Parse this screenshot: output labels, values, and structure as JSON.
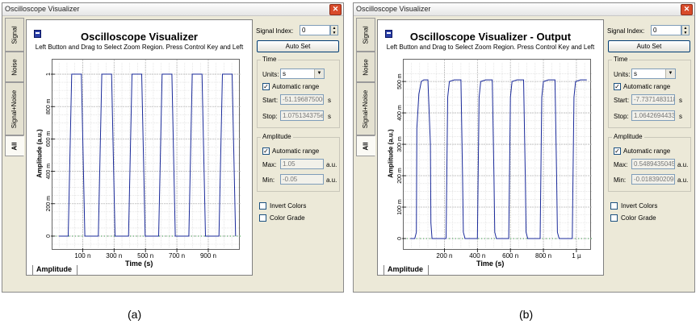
{
  "windows": [
    {
      "title": "Oscilloscope Visualizer",
      "tabs": [
        "Signal",
        "Noise",
        "Signal+Noise",
        "All"
      ],
      "active_tab": "All",
      "plot_title": "Oscilloscope Visualizer",
      "plot_subtitle": "Left Button and Drag to Select Zoom Region. Press Control Key and Left",
      "y_label": "Amplitude (a.u.)",
      "x_label": "Time (s)",
      "bottom_tab": "Amplitude",
      "signal_index_label": "Signal Index:",
      "signal_index_value": "0",
      "auto_set_label": "Auto Set",
      "time_group": "Time",
      "units_label": "Units:",
      "units_value": "s",
      "auto_range_label": "Automatic range",
      "start_label": "Start:",
      "start_value": "-51.196875000",
      "stop_label": "Stop:",
      "stop_value": "1.075134375e",
      "time_unit": "s",
      "amp_group": "Amplitude",
      "amp_auto_label": "Automatic range",
      "max_label": "Max:",
      "max_value": "1.05",
      "min_label": "Min:",
      "min_value": "-0.05",
      "amp_unit": "a.u.",
      "invert_label": "Invert Colors",
      "grade_label": "Color Grade",
      "caption": "(a)"
    },
    {
      "title": "Oscilloscope Visualizer",
      "tabs": [
        "Signal",
        "Noise",
        "Signal+Noise",
        "All"
      ],
      "active_tab": "All",
      "plot_title": "Oscilloscope Visualizer - Output",
      "plot_subtitle": "Left Button and Drag to Select Zoom Region. Press Control Key and Left",
      "y_label": "Amplitude (a.u.)",
      "x_label": "Time (s)",
      "bottom_tab": "Amplitude",
      "signal_index_label": "Signal Index:",
      "signal_index_value": "0",
      "auto_set_label": "Auto Set",
      "time_group": "Time",
      "units_label": "Units:",
      "units_value": "s",
      "auto_range_label": "Automatic range",
      "start_label": "Start:",
      "start_value": "-7.7371483118",
      "stop_label": "Stop:",
      "stop_value": "1.0642694433",
      "time_unit": "s",
      "amp_group": "Amplitude",
      "amp_auto_label": "Automatic range",
      "max_label": "Max:",
      "max_value": "0.5489435045",
      "min_label": "Min:",
      "min_value": "-0.0183902095",
      "amp_unit": "a.u.",
      "invert_label": "Invert Colors",
      "grade_label": "Color Grade",
      "caption": "(b)"
    }
  ],
  "chart_data": [
    {
      "type": "line",
      "title": "Oscilloscope Visualizer",
      "xlabel": "Time (s)",
      "ylabel": "Amplitude (a.u.)",
      "x_unit_scale": "n",
      "xlim": [
        -51.2,
        1075
      ],
      "ylim": [
        -0.05,
        1.05
      ],
      "x_ticks": [
        100,
        300,
        500,
        700,
        900
      ],
      "x_tick_labels": [
        "100 n",
        "300 n",
        "500 n",
        "700 n",
        "900 n"
      ],
      "y_ticks": [
        0,
        0.2,
        0.4,
        0.6,
        0.8,
        1.0
      ],
      "y_tick_labels": [
        "0",
        "200 m",
        "400 m",
        "600 m",
        "800 m",
        "1"
      ],
      "grid": true,
      "series": [
        {
          "color": "#1a2a9a",
          "x": [
            -51,
            8,
            30,
            92,
            114,
            200,
            222,
            284,
            306,
            392,
            414,
            476,
            498,
            584,
            606,
            668,
            690,
            776,
            798,
            860,
            882,
            968,
            990,
            1052,
            1074
          ],
          "y": [
            0,
            0,
            1,
            1,
            0,
            0,
            1,
            1,
            0,
            0,
            1,
            1,
            0,
            0,
            1,
            1,
            0,
            0,
            1,
            1,
            0,
            0,
            1,
            1,
            0
          ]
        }
      ]
    },
    {
      "type": "line",
      "title": "Oscilloscope Visualizer - Output",
      "xlabel": "Time (s)",
      "ylabel": "Amplitude (a.u.)",
      "xlim": [
        -7.74,
        1064
      ],
      "ylim": [
        -0.018,
        0.549
      ],
      "x_ticks": [
        200,
        400,
        600,
        800,
        1000
      ],
      "x_tick_labels": [
        "200 n",
        "400 n",
        "600 n",
        "800 n",
        "1 µ"
      ],
      "y_ticks": [
        0,
        0.1,
        0.2,
        0.3,
        0.4,
        0.5
      ],
      "y_tick_labels": [
        "0",
        "100 m",
        "200 m",
        "300 m",
        "400 m",
        "500 m"
      ],
      "grid": true,
      "series": [
        {
          "color": "#1a2a9a",
          "x": [
            -7,
            20,
            30,
            33,
            45,
            60,
            75,
            100,
            115,
            118,
            125,
            135,
            210,
            220,
            230,
            260,
            300,
            310,
            315,
            325,
            400,
            410,
            420,
            450,
            490,
            500,
            505,
            515,
            590,
            600,
            610,
            640,
            680,
            690,
            695,
            705,
            780,
            790,
            800,
            830,
            870,
            880,
            885,
            895,
            975,
            985,
            995,
            1025,
            1063
          ],
          "y": [
            0,
            0,
            0.02,
            0.35,
            0.46,
            0.5,
            0.505,
            0.505,
            0.3,
            0.05,
            0,
            0,
            0,
            0.45,
            0.5,
            0.505,
            0.505,
            0.2,
            0.02,
            0,
            0,
            0.45,
            0.5,
            0.505,
            0.505,
            0.2,
            0.02,
            0,
            0,
            0.45,
            0.5,
            0.505,
            0.505,
            0.2,
            0.02,
            0,
            0,
            0.45,
            0.5,
            0.505,
            0.505,
            0.2,
            0.02,
            0,
            0,
            0.45,
            0.5,
            0.505,
            0.505
          ]
        }
      ]
    }
  ]
}
